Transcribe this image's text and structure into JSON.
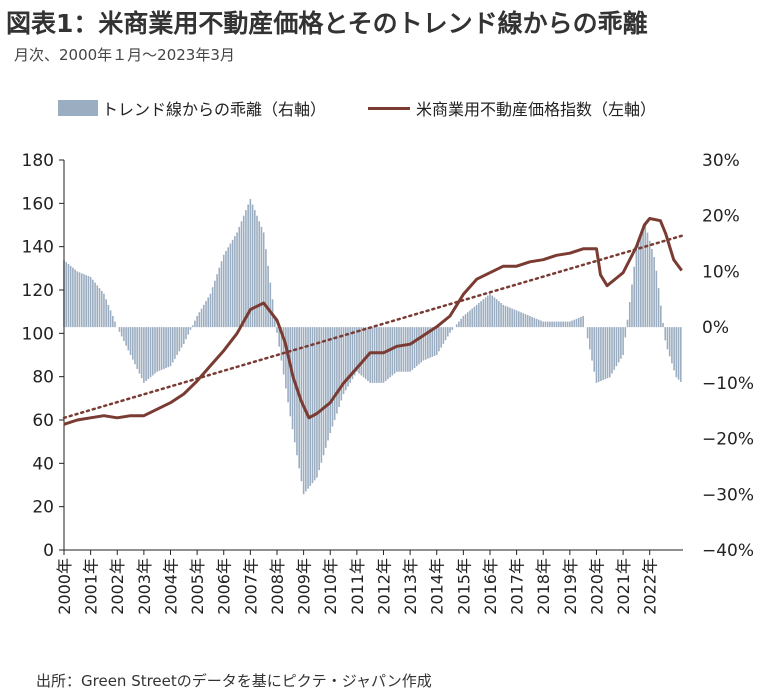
{
  "title": "図表1：米商業用不動産価格とそのトレンド線からの乖離",
  "subtitle": "月次、2000年１月～2023年3月",
  "source": "出所：Green Streetのデータを基にピクテ・ジャパン作成",
  "colors": {
    "bars": "#9badc0",
    "line": "#7a3b33",
    "trend": "#7a3b33",
    "axis": "#222222"
  },
  "chart_data": {
    "type": "bar+line",
    "legend": [
      {
        "label": "トレンド線からの乖離（右軸）",
        "kind": "bar"
      },
      {
        "label": "米商業用不動産価格指数（左軸）",
        "kind": "line"
      }
    ],
    "left_axis": {
      "min": 0,
      "max": 180,
      "ticks": [
        "0",
        "20",
        "40",
        "60",
        "80",
        "100",
        "120",
        "140",
        "160",
        "180"
      ]
    },
    "right_axis": {
      "min": -40,
      "max": 30,
      "ticks": [
        "-40%",
        "-30%",
        "-20%",
        "-10%",
        "0%",
        "10%",
        "20%",
        "30%"
      ]
    },
    "x_labels": [
      "2000年",
      "2001年",
      "2002年",
      "2003年",
      "2004年",
      "2005年",
      "2006年",
      "2007年",
      "2008年",
      "2009年",
      "2010年",
      "2011年",
      "2012年",
      "2013年",
      "2014年",
      "2015年",
      "2016年",
      "2017年",
      "2018年",
      "2019年",
      "2020年",
      "2021年",
      "2022年"
    ],
    "x_range": [
      2000.0,
      2023.25
    ],
    "trend": {
      "start": [
        2000.0,
        61
      ],
      "end": [
        2023.2,
        145
      ]
    },
    "price_index": [
      [
        2000.0,
        58
      ],
      [
        2000.5,
        60
      ],
      [
        2001.0,
        61
      ],
      [
        2001.5,
        62
      ],
      [
        2002.0,
        61
      ],
      [
        2002.5,
        62
      ],
      [
        2003.0,
        62
      ],
      [
        2003.5,
        65
      ],
      [
        2004.0,
        68
      ],
      [
        2004.5,
        72
      ],
      [
        2005.0,
        78
      ],
      [
        2005.5,
        85
      ],
      [
        2006.0,
        92
      ],
      [
        2006.5,
        100
      ],
      [
        2007.0,
        111
      ],
      [
        2007.5,
        114
      ],
      [
        2008.0,
        106
      ],
      [
        2008.3,
        96
      ],
      [
        2008.6,
        80
      ],
      [
        2008.9,
        69
      ],
      [
        2009.2,
        61
      ],
      [
        2009.5,
        63
      ],
      [
        2010.0,
        68
      ],
      [
        2010.5,
        77
      ],
      [
        2011.0,
        84
      ],
      [
        2011.5,
        91
      ],
      [
        2012.0,
        91
      ],
      [
        2012.5,
        94
      ],
      [
        2013.0,
        95
      ],
      [
        2013.5,
        99
      ],
      [
        2014.0,
        103
      ],
      [
        2014.5,
        108
      ],
      [
        2015.0,
        118
      ],
      [
        2015.5,
        125
      ],
      [
        2016.0,
        128
      ],
      [
        2016.5,
        131
      ],
      [
        2017.0,
        131
      ],
      [
        2017.5,
        133
      ],
      [
        2018.0,
        134
      ],
      [
        2018.5,
        136
      ],
      [
        2019.0,
        137
      ],
      [
        2019.5,
        139
      ],
      [
        2020.0,
        139
      ],
      [
        2020.15,
        127
      ],
      [
        2020.4,
        122
      ],
      [
        2020.8,
        126
      ],
      [
        2021.0,
        128
      ],
      [
        2021.5,
        140
      ],
      [
        2021.8,
        150
      ],
      [
        2022.0,
        153
      ],
      [
        2022.4,
        152
      ],
      [
        2022.6,
        146
      ],
      [
        2022.9,
        134
      ],
      [
        2023.2,
        129
      ]
    ],
    "deviation_pct": [
      [
        2000.0,
        12
      ],
      [
        2000.5,
        10
      ],
      [
        2001.0,
        9
      ],
      [
        2001.5,
        6
      ],
      [
        2002.0,
        0
      ],
      [
        2002.5,
        -5
      ],
      [
        2003.0,
        -10
      ],
      [
        2003.5,
        -8
      ],
      [
        2004.0,
        -7
      ],
      [
        2004.5,
        -3
      ],
      [
        2005.0,
        2
      ],
      [
        2005.5,
        6
      ],
      [
        2006.0,
        13
      ],
      [
        2006.5,
        17
      ],
      [
        2007.0,
        23
      ],
      [
        2007.5,
        17
      ],
      [
        2008.0,
        -1
      ],
      [
        2008.5,
        -16
      ],
      [
        2009.0,
        -30
      ],
      [
        2009.5,
        -27
      ],
      [
        2010.0,
        -19
      ],
      [
        2010.5,
        -12
      ],
      [
        2011.0,
        -8
      ],
      [
        2011.5,
        -10
      ],
      [
        2012.0,
        -10
      ],
      [
        2012.5,
        -8
      ],
      [
        2013.0,
        -8
      ],
      [
        2013.5,
        -6
      ],
      [
        2014.0,
        -5
      ],
      [
        2014.5,
        -1
      ],
      [
        2015.0,
        2
      ],
      [
        2015.5,
        4
      ],
      [
        2016.0,
        6
      ],
      [
        2016.5,
        4
      ],
      [
        2017.0,
        3
      ],
      [
        2017.5,
        2
      ],
      [
        2018.0,
        1
      ],
      [
        2018.5,
        1
      ],
      [
        2019.0,
        1
      ],
      [
        2019.5,
        2
      ],
      [
        2020.0,
        -10
      ],
      [
        2020.5,
        -9
      ],
      [
        2021.0,
        -5
      ],
      [
        2021.5,
        14
      ],
      [
        2021.8,
        19
      ],
      [
        2022.2,
        12
      ],
      [
        2022.6,
        -3
      ],
      [
        2023.0,
        -9
      ],
      [
        2023.2,
        -10
      ]
    ]
  }
}
